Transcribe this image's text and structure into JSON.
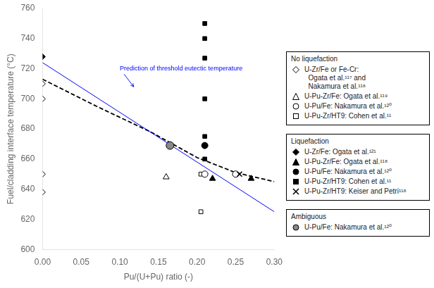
{
  "chart_data": {
    "type": "scatter",
    "xlabel": "Pu/(U+Pu) ratio (-)",
    "ylabel": "Fuel/cladding interface temperature (°C)",
    "xlim": [
      0,
      0.3
    ],
    "ylim": [
      600,
      760
    ],
    "xticks": [
      {
        "value": 0,
        "label": "0.00"
      },
      {
        "value": 0.05,
        "label": "0.05"
      },
      {
        "value": 0.1,
        "label": "0.10"
      },
      {
        "value": 0.15,
        "label": "0.15"
      },
      {
        "value": 0.2,
        "label": "0.20"
      },
      {
        "value": 0.25,
        "label": "0.25"
      },
      {
        "value": 0.3,
        "label": "0.30"
      }
    ],
    "yticks": [
      600,
      620,
      640,
      660,
      680,
      700,
      720,
      740,
      760
    ],
    "grid": false,
    "legend": "right",
    "series": [
      {
        "type": "line",
        "color": "blue",
        "line_style": "solid",
        "x": [
          0.0,
          0.3
        ],
        "values": [
          724,
          625
        ]
      },
      {
        "type": "line",
        "color": "black",
        "line_style": "dashed",
        "x": [
          0.0,
          0.07,
          0.14,
          0.2,
          0.25,
          0.3
        ],
        "values": [
          713,
          695,
          678,
          661,
          651,
          645
        ]
      },
      {
        "name": "U-Zr/Fe or Fe-Cr:\n  Ogata et al.¹¹⁷ and\n  Nakamura et al.¹¹⁸",
        "group": "No liquefaction",
        "marker": "diamond",
        "color": "white",
        "x": [
          0.0,
          0.0,
          0.0,
          0.0
        ],
        "values": [
          700,
          710,
          650,
          638
        ]
      },
      {
        "name": "U-Pu-Zr/Fe: Ogata et al.¹¹⁹",
        "group": "No liquefaction",
        "marker": "triangle",
        "color": "white",
        "x": [
          0.16
        ],
        "values": [
          648
        ]
      },
      {
        "name": "U-Pu/Fe: Nakamura et al.¹²⁰",
        "group": "No liquefaction",
        "marker": "circle",
        "color": "white",
        "x": [
          0.21,
          0.25
        ],
        "values": [
          650,
          650
        ]
      },
      {
        "name": "U-Pu-Zr/HT9: Cohen et al.¹¹",
        "group": "No liquefaction",
        "marker": "square",
        "color": "white",
        "x": [
          0.205,
          0.205
        ],
        "values": [
          650,
          625
        ]
      },
      {
        "name": "U-Zr/Fe: Ogata et al.¹²¹",
        "group": "Liquefaction",
        "marker": "diamond",
        "color": "black",
        "x": [
          0.0
        ],
        "values": [
          728
        ]
      },
      {
        "name": "U-Pu-Zr/Fe: Ogata et al.¹¹⁸",
        "group": "Liquefaction",
        "marker": "triangle",
        "color": "black",
        "x": [
          0.22,
          0.27
        ],
        "values": [
          647,
          647
        ]
      },
      {
        "name": "U-Pu/Fe: Nakamura et al.¹²⁰",
        "group": "Liquefaction",
        "marker": "circle",
        "color": "black",
        "x": [
          0.21
        ],
        "values": [
          669
        ]
      },
      {
        "name": "U-Pu-Zr/HT9: Cohen et al.¹¹",
        "group": "Liquefaction",
        "marker": "square",
        "color": "black",
        "x": [
          0.21,
          0.21,
          0.21,
          0.21,
          0.21,
          0.21
        ],
        "values": [
          750,
          740,
          727,
          700,
          675,
          660
        ]
      },
      {
        "name": "U-Pu-Zr/HT9: Keiser and Petri¹¹⁸",
        "group": "Liquefaction",
        "marker": "x",
        "color": "black",
        "x": [
          0.255
        ],
        "values": [
          650
        ]
      },
      {
        "name": "U-Pu/Fe: Nakamura et al.¹²⁰",
        "group": "Ambiguous",
        "marker": "circle",
        "color": "#888888",
        "x": [
          0.165
        ],
        "values": [
          669
        ]
      }
    ],
    "annotations": [
      {
        "text": "Prediction of threshold eutectic temperature",
        "x": 0.118,
        "y": 708,
        "text_x": 0.1,
        "text_y": 722,
        "color": "blue"
      }
    ]
  }
}
